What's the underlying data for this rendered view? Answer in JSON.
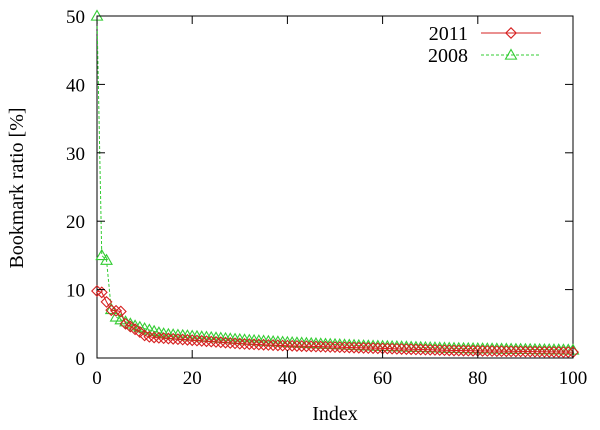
{
  "chart_data": {
    "type": "line",
    "title": "",
    "xlabel": "Index",
    "ylabel": "Bookmark ratio [%]",
    "xlim": [
      0,
      100
    ],
    "ylim": [
      0,
      50
    ],
    "xticks": [
      0,
      20,
      40,
      60,
      80,
      100
    ],
    "yticks": [
      0,
      10,
      20,
      30,
      40,
      50
    ],
    "grid": false,
    "legend_position": "top-right",
    "series": [
      {
        "name": "2011",
        "color": "#d62020",
        "marker": "diamond",
        "line": "solid",
        "x": [
          0,
          1,
          2,
          3,
          4,
          5,
          6,
          7,
          8,
          9,
          10,
          11,
          12,
          13,
          14,
          15,
          16,
          17,
          18,
          19,
          20,
          21,
          22,
          23,
          24,
          25,
          26,
          27,
          28,
          29,
          30,
          31,
          32,
          33,
          34,
          35,
          36,
          37,
          38,
          39,
          40,
          41,
          42,
          43,
          44,
          45,
          46,
          47,
          48,
          49,
          50,
          51,
          52,
          53,
          54,
          55,
          56,
          57,
          58,
          59,
          60,
          61,
          62,
          63,
          64,
          65,
          66,
          67,
          68,
          69,
          70,
          71,
          72,
          73,
          74,
          75,
          76,
          77,
          78,
          79,
          80,
          81,
          82,
          83,
          84,
          85,
          86,
          87,
          88,
          89,
          90,
          91,
          92,
          93,
          94,
          95,
          96,
          97,
          98,
          99,
          100
        ],
        "values": [
          9.8,
          9.6,
          8.2,
          7.0,
          6.9,
          6.8,
          5.0,
          4.6,
          4.2,
          3.8,
          3.3,
          3.1,
          3.0,
          2.95,
          2.9,
          2.85,
          2.8,
          2.75,
          2.7,
          2.65,
          2.6,
          2.55,
          2.5,
          2.45,
          2.4,
          2.35,
          2.3,
          2.25,
          2.2,
          2.15,
          2.1,
          2.06,
          2.03,
          2.0,
          1.97,
          1.94,
          1.91,
          1.88,
          1.85,
          1.82,
          1.8,
          1.78,
          1.76,
          1.74,
          1.72,
          1.7,
          1.68,
          1.66,
          1.64,
          1.62,
          1.6,
          1.58,
          1.56,
          1.54,
          1.52,
          1.5,
          1.48,
          1.46,
          1.44,
          1.42,
          1.4,
          1.38,
          1.36,
          1.34,
          1.32,
          1.3,
          1.28,
          1.26,
          1.24,
          1.22,
          1.2,
          1.18,
          1.16,
          1.14,
          1.12,
          1.1,
          1.09,
          1.08,
          1.07,
          1.06,
          1.05,
          1.04,
          1.03,
          1.02,
          1.01,
          1.0,
          0.99,
          0.98,
          0.97,
          0.96,
          0.95,
          0.94,
          0.93,
          0.92,
          0.91,
          0.9,
          0.89,
          0.88,
          0.87,
          0.86,
          0.85
        ]
      },
      {
        "name": "2008",
        "color": "#33cc33",
        "marker": "triangle",
        "line": "dashed",
        "x": [
          0,
          1,
          2,
          3,
          4,
          5,
          6,
          7,
          8,
          9,
          10,
          11,
          12,
          13,
          14,
          15,
          16,
          17,
          18,
          19,
          20,
          21,
          22,
          23,
          24,
          25,
          26,
          27,
          28,
          29,
          30,
          31,
          32,
          33,
          34,
          35,
          36,
          37,
          38,
          39,
          40,
          41,
          42,
          43,
          44,
          45,
          46,
          47,
          48,
          49,
          50,
          51,
          52,
          53,
          54,
          55,
          56,
          57,
          58,
          59,
          60,
          61,
          62,
          63,
          64,
          65,
          66,
          67,
          68,
          69,
          70,
          71,
          72,
          73,
          74,
          75,
          76,
          77,
          78,
          79,
          80,
          81,
          82,
          83,
          84,
          85,
          86,
          87,
          88,
          89,
          90,
          91,
          92,
          93,
          94,
          95,
          96,
          97,
          98,
          99,
          100
        ],
        "values": [
          50.0,
          15.0,
          14.3,
          7.1,
          6.0,
          5.6,
          5.3,
          5.0,
          4.7,
          4.5,
          4.3,
          4.1,
          3.9,
          3.7,
          3.55,
          3.45,
          3.4,
          3.35,
          3.3,
          3.25,
          3.2,
          3.15,
          3.1,
          3.05,
          3.0,
          2.95,
          2.9,
          2.85,
          2.8,
          2.75,
          2.7,
          2.65,
          2.6,
          2.56,
          2.52,
          2.48,
          2.44,
          2.4,
          2.36,
          2.32,
          2.28,
          2.25,
          2.22,
          2.19,
          2.16,
          2.13,
          2.1,
          2.07,
          2.04,
          2.01,
          1.98,
          1.95,
          1.92,
          1.89,
          1.86,
          1.83,
          1.8,
          1.78,
          1.76,
          1.74,
          1.72,
          1.7,
          1.68,
          1.66,
          1.64,
          1.62,
          1.6,
          1.58,
          1.56,
          1.54,
          1.52,
          1.5,
          1.48,
          1.46,
          1.44,
          1.42,
          1.41,
          1.4,
          1.39,
          1.38,
          1.37,
          1.36,
          1.35,
          1.34,
          1.33,
          1.32,
          1.31,
          1.3,
          1.29,
          1.28,
          1.27,
          1.26,
          1.25,
          1.24,
          1.23,
          1.22,
          1.21,
          1.2,
          1.19,
          1.18,
          1.17
        ]
      }
    ]
  }
}
